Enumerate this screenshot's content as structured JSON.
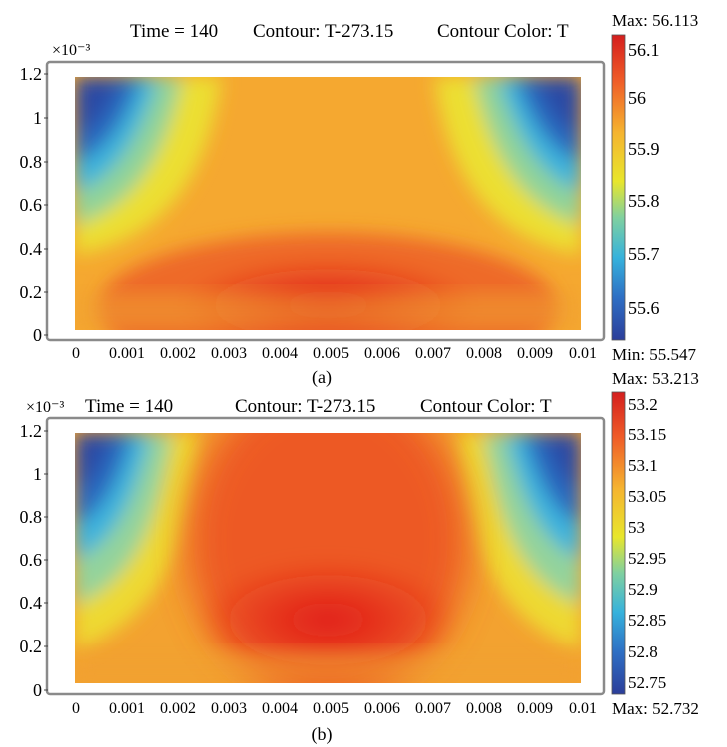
{
  "chart_data": [
    {
      "type": "heatmap",
      "panel_label": "(a)",
      "header": {
        "time": "Time = 140",
        "contour": "Contour: T-273.15",
        "contour_color": "Contour Color: T"
      },
      "x_ticks": [
        "0",
        "0.001",
        "0.002",
        "0.003",
        "0.004",
        "0.005",
        "0.006",
        "0.007",
        "0.008",
        "0.009",
        "0.01"
      ],
      "y_ticks": [
        "0",
        "0.2",
        "0.4",
        "0.6",
        "0.8",
        "1",
        "1.2"
      ],
      "y_multiplier": "×10⁻³",
      "xlim": [
        0,
        0.01
      ],
      "ylim": [
        0,
        0.0012
      ],
      "colorbar": {
        "max_label": "Max: 56.113",
        "min_label": "Min: 55.547",
        "max": 56.113,
        "min": 55.547,
        "ticks": [
          "56.1",
          "56",
          "55.9",
          "55.8",
          "55.7",
          "55.6"
        ]
      }
    },
    {
      "type": "heatmap",
      "panel_label": "(b)",
      "header": {
        "time": "Time = 140",
        "contour": "Contour: T-273.15",
        "contour_color": "Contour Color: T"
      },
      "x_ticks": [
        "0",
        "0.001",
        "0.002",
        "0.003",
        "0.004",
        "0.005",
        "0.006",
        "0.007",
        "0.008",
        "0.009",
        "0.01"
      ],
      "y_ticks": [
        "0",
        "0.2",
        "0.4",
        "0.6",
        "0.8",
        "1",
        "1.2"
      ],
      "y_multiplier": "×10⁻³",
      "xlim": [
        0,
        0.01
      ],
      "ylim": [
        0,
        0.0012
      ],
      "colorbar": {
        "max_label": "Max: 53.213",
        "min_label": "Max: 52.732",
        "max": 53.213,
        "min": 52.732,
        "ticks": [
          "53.2",
          "53.15",
          "53.1",
          "53.05",
          "53",
          "52.95",
          "52.9",
          "52.85",
          "52.8",
          "52.75"
        ]
      }
    }
  ]
}
